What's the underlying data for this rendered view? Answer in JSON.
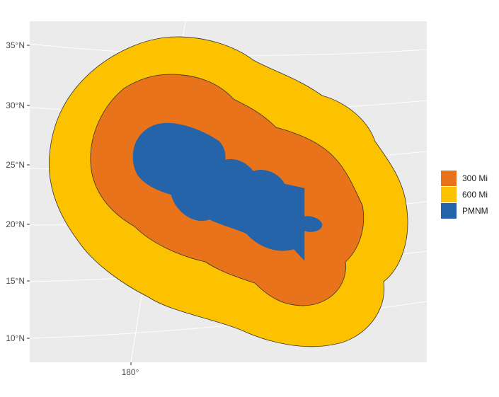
{
  "map": {
    "y_axis_labels": [
      "35°N",
      "30°N",
      "25°N",
      "20°N",
      "15°N",
      "10°N"
    ],
    "x_axis_labels": [
      "180°"
    ],
    "colors": {
      "panel_background": "#ebebeb",
      "gridline": "#ffffff",
      "outline": "#333333",
      "zone_600": "#fcc200",
      "zone_300": "#e9731b",
      "pmnm": "#2564a8"
    }
  },
  "legend": {
    "items": [
      {
        "label": "300 Mi",
        "color": "#e9731b"
      },
      {
        "label": "600 Mi",
        "color": "#fcc200"
      },
      {
        "label": "PMNM",
        "color": "#2564a8"
      }
    ]
  }
}
